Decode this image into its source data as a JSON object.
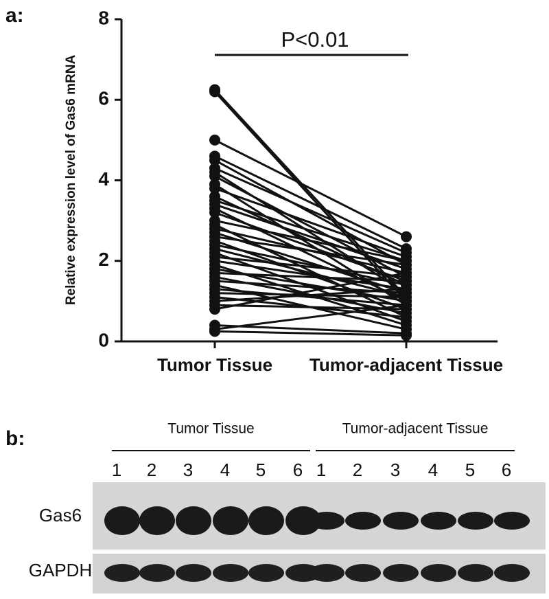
{
  "chart_data": {
    "type": "paired-line",
    "panel_label": "a:",
    "annotation": "P<0.01",
    "ylabel": "Relative expression level of Gas6 mRNA",
    "categories": [
      "Tumor Tissue",
      "Tumor-adjacent Tissue"
    ],
    "color": "#111111",
    "ylim": [
      0,
      8
    ],
    "yticks": [
      0,
      2,
      4,
      6,
      8
    ],
    "series": [
      {
        "values": [
          6.25,
          1.1
        ]
      },
      {
        "values": [
          6.2,
          1.0
        ]
      },
      {
        "values": [
          5.0,
          2.6
        ]
      },
      {
        "values": [
          4.6,
          2.3
        ]
      },
      {
        "values": [
          4.5,
          1.9
        ]
      },
      {
        "values": [
          4.3,
          2.2
        ]
      },
      {
        "values": [
          4.2,
          1.2
        ]
      },
      {
        "values": [
          4.1,
          1.6
        ]
      },
      {
        "values": [
          3.9,
          0.9
        ]
      },
      {
        "values": [
          3.8,
          2.1
        ]
      },
      {
        "values": [
          3.6,
          1.4
        ]
      },
      {
        "values": [
          3.5,
          2.0
        ]
      },
      {
        "values": [
          3.4,
          1.8
        ]
      },
      {
        "values": [
          3.3,
          1.0
        ]
      },
      {
        "values": [
          3.2,
          1.5
        ]
      },
      {
        "values": [
          3.0,
          2.0
        ]
      },
      {
        "values": [
          2.9,
          0.6
        ]
      },
      {
        "values": [
          2.8,
          1.7
        ]
      },
      {
        "values": [
          2.7,
          1.2
        ]
      },
      {
        "values": [
          2.6,
          1.9
        ]
      },
      {
        "values": [
          2.5,
          0.8
        ]
      },
      {
        "values": [
          2.4,
          1.4
        ]
      },
      {
        "values": [
          2.3,
          1.1
        ]
      },
      {
        "values": [
          2.2,
          0.5
        ]
      },
      {
        "values": [
          2.1,
          1.6
        ]
      },
      {
        "values": [
          2.0,
          1.3
        ]
      },
      {
        "values": [
          1.9,
          0.4
        ]
      },
      {
        "values": [
          1.8,
          1.0
        ]
      },
      {
        "values": [
          1.7,
          1.5
        ]
      },
      {
        "values": [
          1.6,
          0.7
        ]
      },
      {
        "values": [
          1.5,
          1.2
        ]
      },
      {
        "values": [
          1.4,
          0.3
        ]
      },
      {
        "values": [
          1.3,
          0.9
        ]
      },
      {
        "values": [
          1.2,
          1.1
        ]
      },
      {
        "values": [
          1.1,
          0.6
        ]
      },
      {
        "values": [
          1.0,
          1.3
        ]
      },
      {
        "values": [
          0.9,
          0.8
        ]
      },
      {
        "values": [
          0.8,
          1.7
        ]
      },
      {
        "values": [
          0.4,
          0.2
        ]
      },
      {
        "values": [
          0.3,
          0.9
        ]
      },
      {
        "values": [
          0.25,
          0.15
        ]
      }
    ]
  },
  "blot": {
    "panel_label": "b:",
    "groups": [
      "Tumor Tissue",
      "Tumor-adjacent Tissue"
    ],
    "lanes": [
      "1",
      "2",
      "3",
      "4",
      "5",
      "6",
      "1",
      "2",
      "3",
      "4",
      "5",
      "6"
    ],
    "rows": [
      "Gas6",
      "GAPDH"
    ]
  }
}
